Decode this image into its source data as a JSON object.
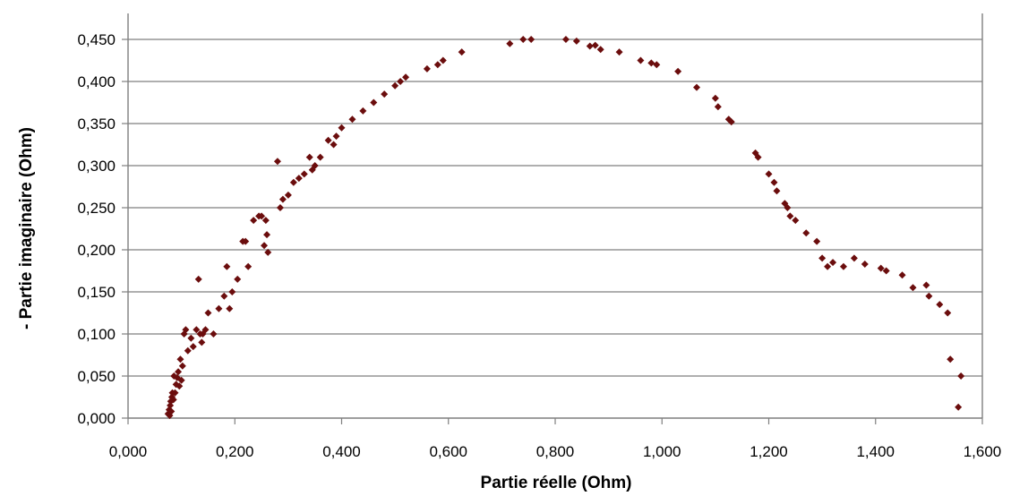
{
  "chart_data": {
    "type": "scatter",
    "title": "",
    "xlabel": "Partie réelle (Ohm)",
    "ylabel": "- Partie imaginaire (Ohm)",
    "xlim": [
      0,
      1.6
    ],
    "ylim": [
      0,
      0.45
    ],
    "x_ticks": [
      "0,000",
      "0,200",
      "0,400",
      "0,600",
      "0,800",
      "1,000",
      "1,200",
      "1,400",
      "1,600"
    ],
    "y_ticks": [
      "0,000",
      "0,050",
      "0,100",
      "0,150",
      "0,200",
      "0,250",
      "0,300",
      "0,350",
      "0,400",
      "0,450"
    ],
    "grid": "horizontal",
    "marker_color": "#6b0d0d",
    "marker": "diamond",
    "x": [
      0.075,
      0.077,
      0.078,
      0.079,
      0.08,
      0.081,
      0.082,
      0.083,
      0.085,
      0.086,
      0.088,
      0.09,
      0.092,
      0.094,
      0.096,
      0.098,
      0.1,
      0.102,
      0.105,
      0.108,
      0.112,
      0.118,
      0.122,
      0.128,
      0.132,
      0.135,
      0.138,
      0.14,
      0.145,
      0.15,
      0.16,
      0.17,
      0.18,
      0.185,
      0.19,
      0.195,
      0.205,
      0.215,
      0.22,
      0.225,
      0.235,
      0.245,
      0.25,
      0.255,
      0.258,
      0.26,
      0.262,
      0.28,
      0.285,
      0.29,
      0.3,
      0.31,
      0.32,
      0.33,
      0.34,
      0.345,
      0.35,
      0.36,
      0.375,
      0.385,
      0.39,
      0.4,
      0.42,
      0.44,
      0.46,
      0.48,
      0.5,
      0.51,
      0.52,
      0.56,
      0.58,
      0.59,
      0.625,
      0.715,
      0.74,
      0.755,
      0.82,
      0.84,
      0.865,
      0.875,
      0.885,
      0.92,
      0.96,
      0.98,
      0.99,
      1.03,
      1.065,
      1.1,
      1.105,
      1.125,
      1.13,
      1.175,
      1.18,
      1.2,
      1.21,
      1.215,
      1.23,
      1.235,
      1.24,
      1.25,
      1.27,
      1.29,
      1.3,
      1.31,
      1.32,
      1.34,
      1.36,
      1.38,
      1.41,
      1.42,
      1.45,
      1.47,
      1.495,
      1.5,
      1.52,
      1.535,
      1.54,
      1.555,
      1.56
    ],
    "y": [
      0.005,
      0.01,
      0.003,
      0.015,
      0.02,
      0.008,
      0.025,
      0.03,
      0.022,
      0.05,
      0.03,
      0.04,
      0.048,
      0.055,
      0.038,
      0.07,
      0.045,
      0.062,
      0.1,
      0.105,
      0.08,
      0.095,
      0.085,
      0.105,
      0.165,
      0.1,
      0.09,
      0.1,
      0.105,
      0.125,
      0.1,
      0.13,
      0.145,
      0.18,
      0.13,
      0.15,
      0.165,
      0.21,
      0.21,
      0.18,
      0.235,
      0.24,
      0.24,
      0.205,
      0.235,
      0.218,
      0.197,
      0.305,
      0.25,
      0.26,
      0.265,
      0.28,
      0.285,
      0.29,
      0.31,
      0.295,
      0.3,
      0.31,
      0.33,
      0.325,
      0.335,
      0.345,
      0.355,
      0.365,
      0.375,
      0.385,
      0.395,
      0.4,
      0.405,
      0.415,
      0.42,
      0.425,
      0.435,
      0.445,
      0.45,
      0.45,
      0.45,
      0.448,
      0.442,
      0.443,
      0.438,
      0.435,
      0.425,
      0.422,
      0.42,
      0.412,
      0.393,
      0.38,
      0.37,
      0.355,
      0.352,
      0.315,
      0.31,
      0.29,
      0.28,
      0.27,
      0.255,
      0.25,
      0.24,
      0.235,
      0.22,
      0.21,
      0.19,
      0.18,
      0.185,
      0.18,
      0.19,
      0.183,
      0.178,
      0.175,
      0.17,
      0.155,
      0.158,
      0.145,
      0.135,
      0.125,
      0.07,
      0.013,
      0.05
    ]
  }
}
